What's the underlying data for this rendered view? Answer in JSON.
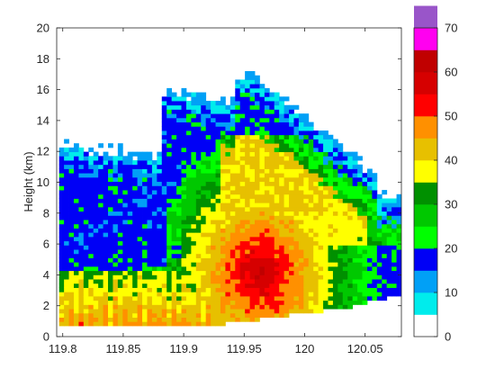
{
  "chart_data": {
    "type": "heatmap",
    "title": "",
    "xlabel": "",
    "ylabel": "Height (km)",
    "xlim": [
      119.795,
      120.08
    ],
    "ylim": [
      0,
      20
    ],
    "x_ticks": [
      119.8,
      119.85,
      119.9,
      119.95,
      120,
      120.05
    ],
    "x_tick_labels": [
      "119.8",
      "119.85",
      "119.9",
      "119.95",
      "120",
      "120.05"
    ],
    "y_ticks": [
      0,
      2,
      4,
      6,
      8,
      10,
      12,
      14,
      16,
      18,
      20
    ],
    "y_tick_labels": [
      "0",
      "2",
      "4",
      "6",
      "8",
      "10",
      "12",
      "14",
      "16",
      "18",
      "20"
    ],
    "colorbar": {
      "range": [
        0,
        70
      ],
      "ticks": [
        0,
        10,
        20,
        30,
        40,
        50,
        60,
        70
      ],
      "tick_labels": [
        "0",
        "10",
        "20",
        "30",
        "40",
        "50",
        "60",
        "70"
      ],
      "bins": [
        {
          "from": 0,
          "to": 5,
          "color": "#ffffff"
        },
        {
          "from": 5,
          "to": 10,
          "color": "#00ecec"
        },
        {
          "from": 10,
          "to": 15,
          "color": "#01a0f6"
        },
        {
          "from": 15,
          "to": 20,
          "color": "#0000f6"
        },
        {
          "from": 20,
          "to": 25,
          "color": "#00ff00"
        },
        {
          "from": 25,
          "to": 30,
          "color": "#00c800"
        },
        {
          "from": 30,
          "to": 35,
          "color": "#009000"
        },
        {
          "from": 35,
          "to": 40,
          "color": "#ffff00"
        },
        {
          "from": 40,
          "to": 45,
          "color": "#e7c000"
        },
        {
          "from": 45,
          "to": 50,
          "color": "#ff9000"
        },
        {
          "from": 50,
          "to": 55,
          "color": "#ff0000"
        },
        {
          "from": 55,
          "to": 60,
          "color": "#d60000"
        },
        {
          "from": 60,
          "to": 65,
          "color": "#c00000"
        },
        {
          "from": 65,
          "to": 70,
          "color": "#ff00f0"
        },
        {
          "from": 70,
          "to": 75,
          "color": "#9955c9"
        }
      ]
    },
    "grid": false
  }
}
